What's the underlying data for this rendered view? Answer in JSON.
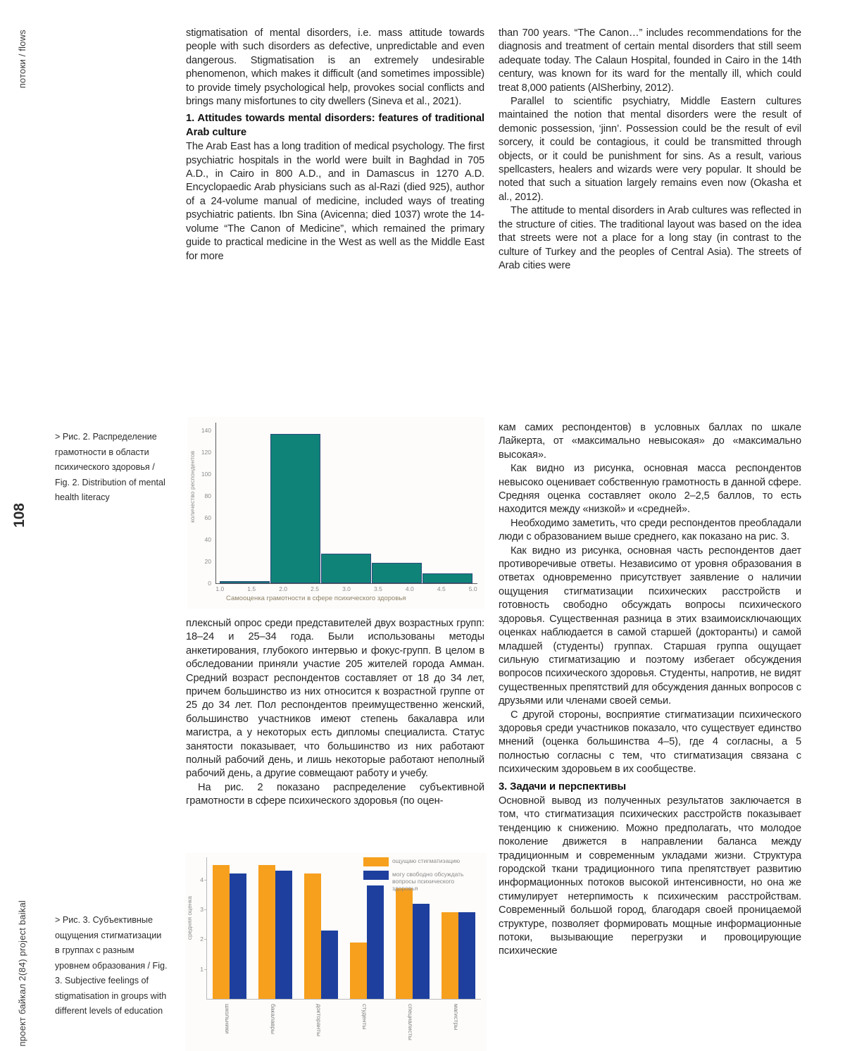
{
  "sidebar": {
    "flows": "потоки / flows",
    "page_number": "108",
    "journal": "проект байкал 2(84) project baikal"
  },
  "captions": {
    "fig2": "> Рис. 2. Распределение грамотности в области психического здоровья / Fig. 2. Distribution of mental health literacy",
    "fig3": "> Рис. 3. Субъективные ощущения стигматизации в группах с разным уровнем образования / Fig. 3. Subjective feelings of stigmatisation in groups with different levels of education"
  },
  "left_column": {
    "para1": "stigmatisation of mental disorders, i.e. mass attitude towards people with such disorders as defective, unpredictable and even dangerous. Stigmatisation is an extremely undesirable phenomenon, which makes it difficult (and sometimes impossible) to provide timely psychological help, provokes social conflicts and brings many misfortunes to city dwellers (Sineva et al., 2021).",
    "heading1": "1. Attitudes towards mental disorders: features of traditional Arab culture",
    "para2": "The Arab East has a long tradition of medical psychology. The first psychiatric hospitals in the world were built in Baghdad in 705 A.D., in Cairo in 800 A.D., and in Damascus in 1270 A.D. Encyclopaedic Arab physicians such as al-Razi (died 925), author of a 24-volume manual of medicine, included ways of treating psychiatric patients. Ibn Sina (Avicenna; died 1037) wrote the 14-volume “The Canon of Medicine”, which remained the primary guide to practical medicine in the West as well as the Middle East for more",
    "ru_para1": "плексный опрос среди представителей двух возрастных групп: 18–24 и 25–34 года. Были использованы методы анкетирования, глубокого интервью и фокус-групп. В целом в обследовании приняли участие 205 жителей города Амман. Средний возраст респондентов составляет от 18 до 34 лет, причем большинство из них относится к возрастной группе от 25 до 34 лет. Пол респондентов преимущественно женский, большинство участников имеют степень бакалавра или магистра, а у некоторых есть дипломы специалиста. Статус занятости показывает, что большинство из них работают полный рабочий день, и лишь некоторые работают неполный рабочий день, а другие совмещают работу и учебу.",
    "ru_para2": "На рис. 2 показано распределение субъективной грамотности в сфере психического здоровья (по оцен-"
  },
  "right_column": {
    "para1": "than 700 years. “The Canon…” includes recommendations for the diagnosis and treatment of certain mental disorders that still seem adequate today. The Calaun Hospital, founded in Cairo in the 14th century, was known for its ward for the mentally ill, which could treat 8,000 patients (AlSherbiny, 2012).",
    "para2": "Parallel to scientific psychiatry, Middle Eastern cultures maintained the notion that mental disorders were the result of demonic possession, ‘jinn’. Possession could be the result of evil sorcery, it could be contagious, it could be transmitted through objects, or it could be punishment for sins. As a result, various spellcasters, healers and wizards were very popular. It should be noted that such a situation largely remains even now (Okasha et al., 2012).",
    "para3": "The attitude to mental disorders in Arab cultures was reflected in the structure of cities. The traditional layout was based on the idea that streets were not a place for a long stay (in contrast to the culture of Turkey and the peoples of Central Asia). The streets of Arab cities were",
    "ru_para1": "кам самих респондентов) в условных баллах по шкале Лайкерта, от «максимально невысокая» до «максимально высокая».",
    "ru_para2": "Как видно из рисунка, основная масса респондентов невысоко оценивает собственную грамотность в данной сфере. Средняя оценка составляет около 2–2,5 баллов, то есть находится между «низкой» и «средней».",
    "ru_para3": "Необходимо заметить, что среди респондентов преобладали люди с образованием выше среднего, как показано на рис. 3.",
    "ru_para4": "Как видно из рисунка, основная часть респондентов дает противоречивые ответы. Независимо от уровня образования в ответах одновременно присутствует заявление о наличии ощущения стигматизации психических расстройств и готовность свободно обсуждать вопросы психического здоровья. Существенная разница в этих взаимоисключающих оценках наблюдается в самой старшей (докторанты) и самой младшей (студенты) группах. Старшая группа ощущает сильную стигматизацию и поэтому избегает обсуждения вопросов психического здоровья. Студенты, напротив, не видят существенных препятствий для обсуждения данных вопросов с друзьями или членами своей семьи.",
    "ru_para5": "С другой стороны, восприятие стигматизации психического здоровья среди участников показало, что существует единство мнений (оценка большинства 4–5), где 4 согласны, а 5 полностью согласны с тем, что стигматизация связана с психическим здоровьем в их сообществе.",
    "heading3": "3. Задачи и перспективы",
    "ru_para6": "Основной вывод из полученных результатов заключается в том, что стигматизация психических расстройств показывает тенденцию к снижению. Можно предполагать, что молодое поколение движется в направлении баланса между традиционным и современным укладами жизни. Структура городской ткани традиционного типа препятствует развитию информационных потоков высокой интенсивности, но она же стимулирует нетерпимость к психическим расстройствам. Современный большой город, благодаря своей проницаемой структуре, позволяет формировать мощные информационные потоки, вызывающие перегрузки и провоцирующие психические"
  },
  "chart_data": [
    {
      "type": "bar",
      "subtype": "histogram",
      "title": "",
      "xlabel": "Самооценка грамотности в сфере психического здоровья",
      "ylabel": "количество респондентов",
      "bin_start": 1.0,
      "bin_width": 0.8,
      "categories": [
        "1.0–1.8",
        "1.8–2.6",
        "2.6–3.4",
        "3.4–4.2",
        "4.2–5.0"
      ],
      "values": [
        2,
        137,
        27,
        19,
        9
      ],
      "xtick_vals": [
        1.0,
        1.5,
        2.0,
        2.5,
        3.0,
        3.5,
        4.0,
        4.5,
        5.0
      ],
      "xtick_labels": [
        "1.0",
        "1.5",
        "2.0",
        "2.5",
        "3.0",
        "3.5",
        "4.0",
        "4.5",
        "5.0"
      ],
      "yticks": [
        0,
        20,
        40,
        60,
        80,
        100,
        120,
        140
      ],
      "xlim": [
        0.93,
        5.07
      ],
      "ylim": [
        0,
        147
      ],
      "grid": false,
      "bar_color": "#0f8378",
      "bar_border": "#2b4a7a"
    },
    {
      "type": "bar",
      "subtype": "grouped",
      "title": "",
      "xlabel": "",
      "ylabel": "средняя оценка",
      "categories": [
        "школьники",
        "бакалавры",
        "докторанты",
        "студенты",
        "специалисты",
        "магистры"
      ],
      "series": [
        {
          "name": "ощущаю стигматизацию",
          "color": "#f6a01e",
          "values": [
            4.5,
            4.5,
            4.2,
            1.9,
            3.7,
            2.9
          ]
        },
        {
          "name": "могу свободно обсуждать вопросы психического здоровья",
          "color": "#1e3f9e",
          "values": [
            4.2,
            4.3,
            2.3,
            3.8,
            3.2,
            2.9
          ]
        }
      ],
      "yticks": [
        1,
        2,
        3,
        4
      ],
      "ylim": [
        0,
        4.75
      ],
      "grid": false,
      "legend_position": "top-right"
    }
  ]
}
